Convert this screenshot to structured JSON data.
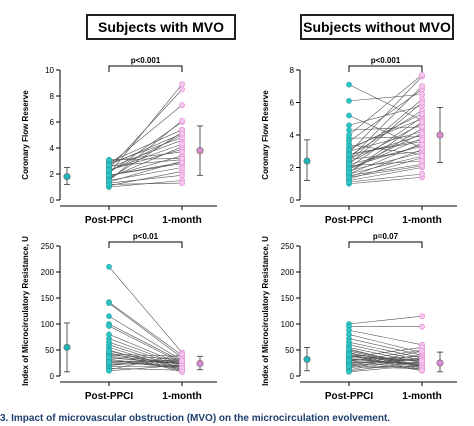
{
  "headers": {
    "left": "Subjects with MVO",
    "right": "Subjects without MVO"
  },
  "caption": "3. Impact of microvascular obstruction (MVO) on the microcirculation evolvement.",
  "colors": {
    "post": "#2ec4c4",
    "month": "#e69ad9",
    "summary_post": "#1fb5b5",
    "summary_month": "#d98bd0",
    "line": "#555555"
  },
  "chart_data": [
    {
      "type": "scatter",
      "panel": "top-left",
      "ylabel": "Coronary Flow Reserve",
      "ylim": [
        0,
        10
      ],
      "yticks": [
        0,
        2,
        4,
        6,
        8,
        10
      ],
      "categories": [
        "Post-PPCI",
        "1-month"
      ],
      "significance": "p<0.001",
      "summary": [
        {
          "mean": 1.8,
          "low": 1.2,
          "high": 2.5
        },
        {
          "mean": 3.8,
          "low": 1.9,
          "high": 5.7
        }
      ],
      "series": [
        {
          "values": [
            1.0,
            1.1,
            1.3,
            1.4,
            1.5,
            1.6,
            1.7,
            1.8,
            1.9,
            2.0,
            2.1,
            2.2,
            2.3,
            2.4,
            2.5,
            2.6,
            2.7,
            2.8,
            2.9,
            3.0,
            1.2,
            1.9,
            2.3,
            1.5,
            2.7,
            3.1
          ]
        },
        {
          "values": [
            1.5,
            2.2,
            1.9,
            3.0,
            2.5,
            5.2,
            4.1,
            3.4,
            2.8,
            8.9,
            6.0,
            5.0,
            3.9,
            8.5,
            4.6,
            3.1,
            7.3,
            4.8,
            5.4,
            3.7,
            1.3,
            2.9,
            4.3,
            6.1,
            5.1,
            3.2
          ]
        }
      ]
    },
    {
      "type": "scatter",
      "panel": "top-right",
      "ylabel": "Coronary Flow Reserve",
      "ylim": [
        0,
        8
      ],
      "yticks": [
        0,
        2,
        4,
        6,
        8
      ],
      "categories": [
        "Post-PPCI",
        "1-month"
      ],
      "significance": "p<0.001",
      "summary": [
        {
          "mean": 2.4,
          "low": 1.2,
          "high": 3.7
        },
        {
          "mean": 4.0,
          "low": 2.3,
          "high": 5.7
        }
      ],
      "series": [
        {
          "values": [
            1.0,
            1.2,
            1.3,
            1.4,
            1.5,
            1.6,
            1.7,
            1.8,
            1.9,
            2.0,
            2.1,
            2.2,
            2.3,
            2.4,
            2.5,
            2.6,
            2.7,
            2.8,
            2.9,
            3.0,
            3.2,
            3.4,
            3.6,
            3.8,
            4.0,
            4.3,
            4.6,
            5.2,
            6.1,
            7.1,
            1.1,
            1.6,
            2.0,
            2.5,
            3.1,
            1.4,
            1.9,
            2.2,
            2.8,
            1.7
          ]
        },
        {
          "values": [
            1.4,
            2.0,
            2.6,
            3.1,
            2.2,
            3.5,
            4.4,
            2.9,
            3.8,
            5.1,
            2.4,
            3.3,
            4.7,
            6.2,
            3.0,
            4.0,
            5.5,
            3.6,
            7.6,
            4.2,
            5.0,
            2.8,
            6.8,
            3.9,
            7.7,
            4.5,
            5.8,
            3.2,
            6.5,
            4.9,
            1.6,
            2.7,
            3.4,
            7.0,
            5.3,
            2.1,
            4.1,
            6.0,
            3.7,
            4.8
          ]
        }
      ]
    },
    {
      "type": "scatter",
      "panel": "bottom-left",
      "ylabel": "Index of Microcirculatory Resistance, U",
      "ylim": [
        0,
        250
      ],
      "yticks": [
        0,
        50,
        100,
        150,
        200,
        250
      ],
      "categories": [
        "Post-PPCI",
        "1-month"
      ],
      "significance": "p<0.01",
      "summary": [
        {
          "mean": 55,
          "low": 8,
          "high": 102
        },
        {
          "mean": 24,
          "low": 12,
          "high": 38
        }
      ],
      "series": [
        {
          "values": [
            210,
            142,
            140,
            115,
            100,
            96,
            80,
            72,
            65,
            60,
            55,
            50,
            45,
            42,
            40,
            38,
            35,
            32,
            30,
            28,
            25,
            22,
            20,
            18,
            15,
            12,
            10,
            48,
            36,
            26
          ]
        },
        {
          "values": [
            45,
            40,
            35,
            30,
            28,
            25,
            22,
            20,
            18,
            15,
            12,
            10,
            8,
            38,
            32,
            26,
            24,
            16,
            14,
            30,
            20,
            27,
            33,
            19,
            11,
            42,
            21,
            17,
            23,
            29
          ]
        }
      ]
    },
    {
      "type": "scatter",
      "panel": "bottom-right",
      "ylabel": "Index of Microcirculatory Resistance, U",
      "ylim": [
        0,
        250
      ],
      "yticks": [
        0,
        50,
        100,
        150,
        200,
        250
      ],
      "categories": [
        "Post-PPCI",
        "1-month"
      ],
      "significance": "p=0.07",
      "summary": [
        {
          "mean": 32,
          "low": 10,
          "high": 55
        },
        {
          "mean": 25,
          "low": 8,
          "high": 46
        }
      ],
      "series": [
        {
          "values": [
            100,
            95,
            88,
            80,
            72,
            65,
            60,
            55,
            50,
            48,
            45,
            42,
            40,
            38,
            35,
            32,
            30,
            28,
            25,
            22,
            20,
            18,
            15,
            12,
            10,
            8,
            36,
            44,
            26,
            33,
            52,
            24,
            30,
            41,
            19
          ]
        },
        {
          "values": [
            115,
            95,
            60,
            45,
            40,
            35,
            30,
            25,
            20,
            18,
            15,
            12,
            10,
            28,
            32,
            22,
            38,
            50,
            26,
            24,
            17,
            14,
            42,
            36,
            27,
            21,
            55,
            19,
            31,
            23,
            16,
            33,
            11,
            29,
            48
          ]
        }
      ]
    }
  ]
}
